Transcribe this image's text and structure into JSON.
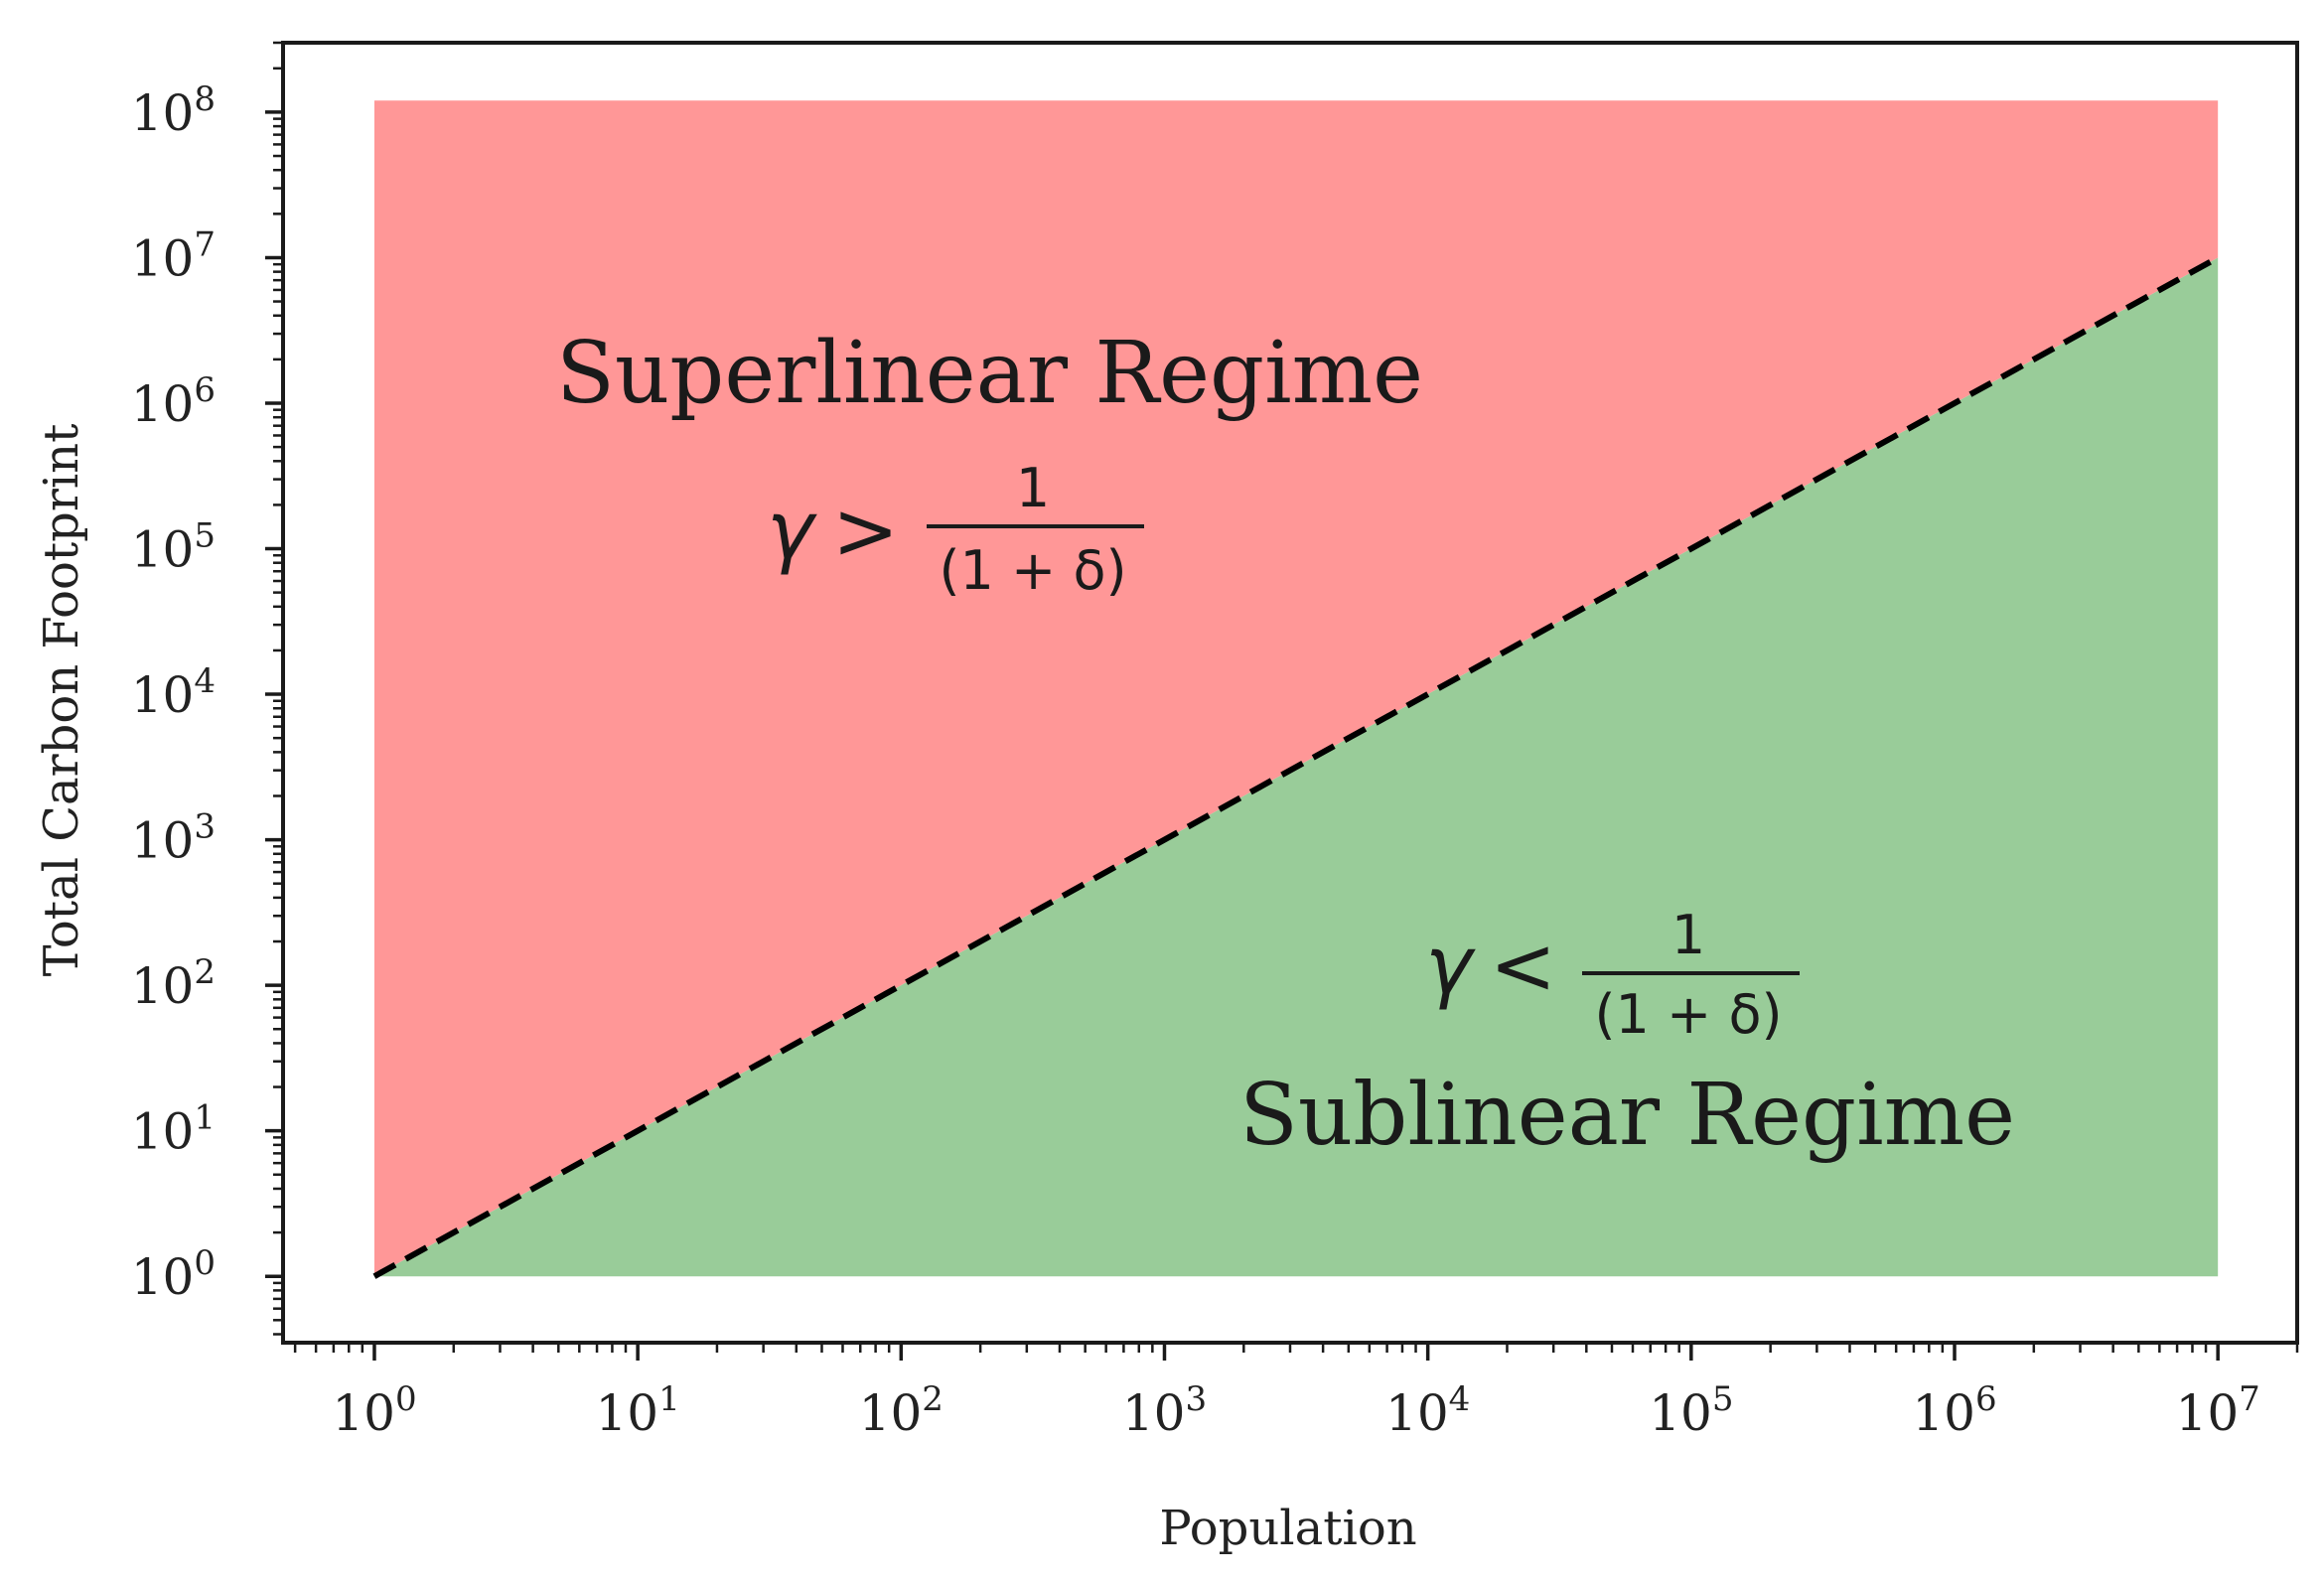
{
  "chart_data": {
    "type": "area",
    "xlabel": "Population",
    "ylabel": "Total Carbon Footprint",
    "xscale": "log",
    "yscale": "log",
    "xlim": [
      0.45,
      20000000
    ],
    "ylim": [
      0.35,
      300000000
    ],
    "x_ticks": [
      1,
      10,
      100,
      1000,
      10000,
      100000,
      1000000,
      10000000
    ],
    "y_ticks": [
      1,
      10,
      100,
      1000,
      10000,
      100000,
      1000000,
      10000000,
      100000000
    ],
    "x_tick_labels": [
      {
        "base": "10",
        "exp": "0"
      },
      {
        "base": "10",
        "exp": "1"
      },
      {
        "base": "10",
        "exp": "2"
      },
      {
        "base": "10",
        "exp": "3"
      },
      {
        "base": "10",
        "exp": "4"
      },
      {
        "base": "10",
        "exp": "5"
      },
      {
        "base": "10",
        "exp": "6"
      },
      {
        "base": "10",
        "exp": "7"
      }
    ],
    "y_tick_labels": [
      {
        "base": "10",
        "exp": "0"
      },
      {
        "base": "10",
        "exp": "1"
      },
      {
        "base": "10",
        "exp": "2"
      },
      {
        "base": "10",
        "exp": "3"
      },
      {
        "base": "10",
        "exp": "4"
      },
      {
        "base": "10",
        "exp": "5"
      },
      {
        "base": "10",
        "exp": "6"
      },
      {
        "base": "10",
        "exp": "7"
      },
      {
        "base": "10",
        "exp": "8"
      }
    ],
    "dashed_line": {
      "x": [
        1,
        10000000
      ],
      "y": [
        1,
        10000000
      ],
      "color": "#000000"
    },
    "regions": [
      {
        "name": "Superlinear Regime",
        "color": "#ff9797",
        "x": [
          1,
          10000000
        ],
        "y_lower": [
          1,
          10000000
        ],
        "y_upper": [
          120000000,
          120000000
        ]
      },
      {
        "name": "Sublinear Regime",
        "color": "#99cc99",
        "x": [
          1,
          10000000
        ],
        "y_lower": [
          1,
          1
        ],
        "y_upper": [
          1,
          10000000
        ]
      }
    ],
    "annotations": {
      "superlinear": {
        "title": "Superlinear Regime",
        "math": {
          "gamma": "γ",
          "op": ">",
          "num": "1",
          "den": "(1 + δ)"
        }
      },
      "sublinear": {
        "title": "Sublinear Regime",
        "math": {
          "gamma": "γ",
          "op": "<",
          "num": "1",
          "den": "(1 + δ)"
        }
      }
    }
  }
}
